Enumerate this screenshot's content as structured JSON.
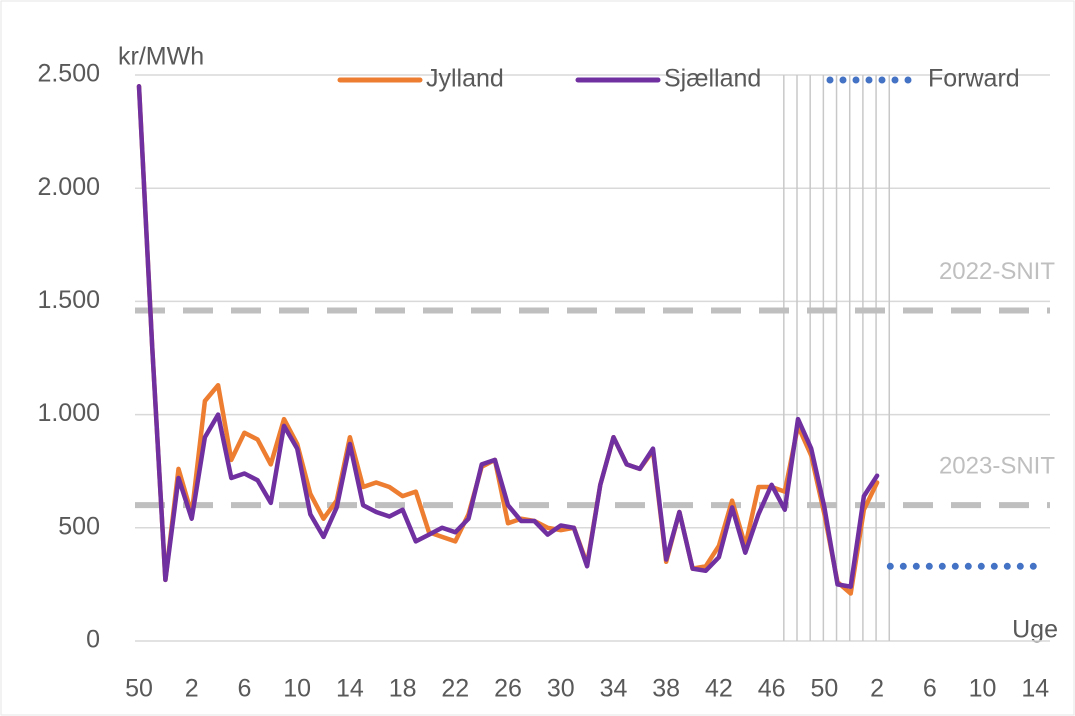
{
  "chart_data": {
    "type": "line",
    "y_label": "kr/MWh",
    "x_label": "Uge",
    "categories": [
      50,
      null,
      null,
      null,
      2,
      null,
      null,
      null,
      6,
      null,
      null,
      null,
      10,
      null,
      null,
      null,
      14,
      null,
      null,
      null,
      18,
      null,
      null,
      null,
      22,
      null,
      null,
      null,
      26,
      null,
      null,
      null,
      30,
      null,
      null,
      null,
      34,
      null,
      null,
      null,
      38,
      null,
      null,
      null,
      42,
      null,
      null,
      null,
      46,
      null,
      null,
      null,
      50,
      null,
      null,
      null,
      2,
      null,
      null,
      null,
      6,
      null,
      null,
      null,
      10,
      null,
      null,
      null,
      14
    ],
    "series": [
      {
        "name": "Jylland",
        "color": "#ed7d31",
        "style": "solid",
        "values": [
          2450,
          1300,
          270,
          760,
          560,
          1060,
          1130,
          800,
          920,
          890,
          780,
          980,
          870,
          650,
          540,
          620,
          900,
          680,
          700,
          680,
          640,
          660,
          480,
          460,
          440,
          560,
          770,
          800,
          520,
          540,
          530,
          500,
          490,
          500,
          340,
          690,
          900,
          780,
          760,
          840,
          350,
          570,
          320,
          330,
          420,
          620,
          420,
          680,
          680,
          660,
          950,
          820,
          560,
          260,
          210,
          580,
          700,
          null,
          null,
          null,
          null,
          null,
          null,
          null,
          null,
          null,
          null,
          null,
          null
        ]
      },
      {
        "name": "Sjælland",
        "color": "#7030a0",
        "style": "solid",
        "values": [
          2450,
          1300,
          270,
          720,
          540,
          900,
          1000,
          720,
          740,
          710,
          610,
          950,
          850,
          560,
          460,
          590,
          870,
          600,
          570,
          550,
          580,
          440,
          470,
          500,
          480,
          540,
          780,
          800,
          600,
          530,
          530,
          470,
          510,
          500,
          330,
          690,
          900,
          780,
          760,
          850,
          360,
          570,
          320,
          310,
          370,
          590,
          390,
          560,
          690,
          580,
          980,
          850,
          590,
          250,
          240,
          640,
          730,
          null,
          null,
          null,
          null,
          null,
          null,
          null,
          null,
          null,
          null,
          null,
          null
        ]
      },
      {
        "name": "Forward",
        "color": "#4472c4",
        "style": "dotted",
        "values": [
          null,
          null,
          null,
          null,
          null,
          null,
          null,
          null,
          null,
          null,
          null,
          null,
          null,
          null,
          null,
          null,
          null,
          null,
          null,
          null,
          null,
          null,
          null,
          null,
          null,
          null,
          null,
          null,
          null,
          null,
          null,
          null,
          null,
          null,
          null,
          null,
          null,
          null,
          null,
          null,
          null,
          null,
          null,
          null,
          null,
          null,
          null,
          null,
          null,
          null,
          null,
          null,
          null,
          null,
          null,
          null,
          null,
          330,
          330,
          330,
          330,
          330,
          330,
          330,
          330,
          330,
          330,
          330,
          330
        ]
      }
    ],
    "reference_lines": [
      {
        "label": "2022-SNIT",
        "value": 1460
      },
      {
        "label": "2023-SNIT",
        "value": 600
      }
    ],
    "ylim": [
      0,
      2500
    ],
    "yticks": [
      0,
      500,
      {
        "value": 1000,
        "label": "1.000"
      },
      {
        "value": 1500,
        "label": "1.500"
      },
      {
        "value": 2000,
        "label": "2.000"
      },
      {
        "value": 2500,
        "label": "2.500"
      }
    ],
    "grid": true
  }
}
